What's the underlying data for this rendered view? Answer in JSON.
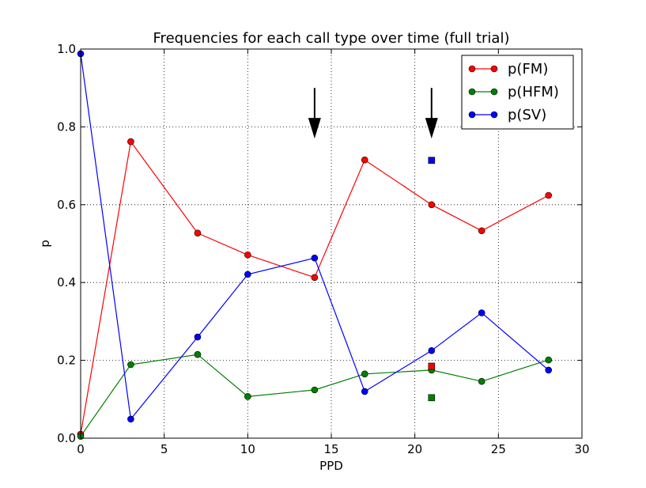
{
  "chart_data": {
    "type": "line",
    "title": "Frequencies for each call type over time (full trial)",
    "xlabel": "PPD",
    "ylabel": "p",
    "xlim": [
      0,
      30
    ],
    "ylim": [
      0,
      1
    ],
    "xticks": [
      0,
      5,
      10,
      15,
      20,
      25,
      30
    ],
    "yticks": [
      0.0,
      0.2,
      0.4,
      0.6,
      0.8,
      1.0
    ],
    "xtick_labels": [
      "0",
      "5",
      "10",
      "15",
      "20",
      "25",
      "30"
    ],
    "ytick_labels": [
      "0.0",
      "0.2",
      "0.4",
      "0.6",
      "0.8",
      "1.0"
    ],
    "grid": true,
    "legend_position": "top-right",
    "x": [
      0,
      3,
      7,
      10,
      14,
      17,
      21,
      24,
      28
    ],
    "series": [
      {
        "name": "p(FM)",
        "color": "#ff0000",
        "values": [
          0.01,
          0.762,
          0.527,
          0.471,
          0.413,
          0.715,
          0.6,
          0.533,
          0.624
        ]
      },
      {
        "name": "p(HFM)",
        "color": "#008000",
        "values": [
          0.005,
          0.189,
          0.215,
          0.107,
          0.124,
          0.165,
          0.175,
          0.146,
          0.201
        ]
      },
      {
        "name": "p(SV)",
        "color": "#0000ff",
        "values": [
          0.988,
          0.049,
          0.26,
          0.421,
          0.463,
          0.12,
          0.225,
          0.322,
          0.175
        ]
      }
    ],
    "extra_points": [
      {
        "x": 21,
        "y": 0.714,
        "color": "#0000ff",
        "marker": "square"
      },
      {
        "x": 21,
        "y": 0.185,
        "color": "#ff0000",
        "marker": "square"
      },
      {
        "x": 21,
        "y": 0.104,
        "color": "#008000",
        "marker": "square"
      }
    ],
    "annotations": [
      {
        "type": "arrow",
        "x": 14,
        "y_start": 0.9,
        "y_end": 0.77
      },
      {
        "type": "arrow",
        "x": 21,
        "y_start": 0.9,
        "y_end": 0.77
      }
    ]
  }
}
